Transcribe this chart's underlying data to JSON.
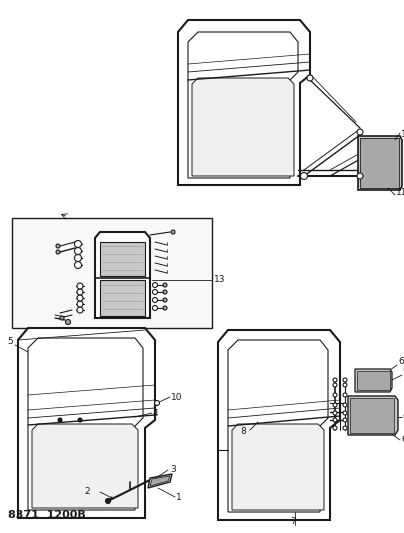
{
  "title": "8371  1200B",
  "bg": "#ffffff",
  "lc": "#1a1a1a",
  "figsize": [
    4.04,
    5.33
  ],
  "dpi": 100,
  "gray_light": "#c8c8c8",
  "gray_mid": "#a8a8a8",
  "gray_dark": "#888888"
}
